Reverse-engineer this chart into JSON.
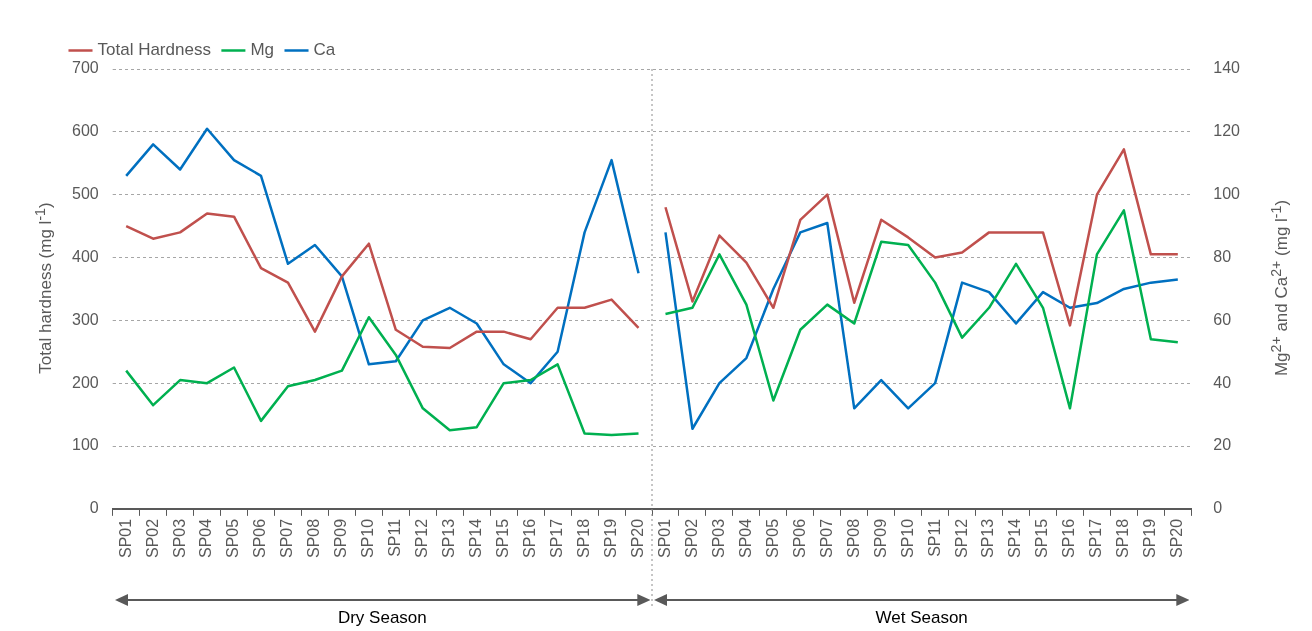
{
  "chart_data": {
    "type": "line",
    "ylabel": "Total hardness (mg l$^{-1}$)",
    "y2label": "Mg$^{2+}$ and Ca$^{2+}$ (mg l$^{-1}$)",
    "categories": [
      "SP01",
      "SP02",
      "SP03",
      "SP04",
      "SP05",
      "SP06",
      "SP07",
      "SP08",
      "SP09",
      "SP10",
      "SP11",
      "SP12",
      "SP13",
      "SP14",
      "SP15",
      "SP16",
      "SP17",
      "SP18",
      "SP19",
      "SP20",
      "SP01",
      "SP02",
      "SP03",
      "SP04",
      "SP05",
      "SP06",
      "SP07",
      "SP08",
      "SP09",
      "SP10",
      "SP11",
      "SP12",
      "SP13",
      "SP14",
      "SP15",
      "SP16",
      "SP17",
      "SP18",
      "SP19",
      "SP20"
    ],
    "series": [
      {
        "name": "Total Hardness",
        "color": "#c0504d",
        "values": [
          450,
          430,
          440,
          470,
          465,
          383,
          360,
          282,
          370,
          422,
          285,
          258,
          256,
          282,
          282,
          270,
          320,
          320,
          333,
          288,
          null,
          null,
          null,
          null,
          null,
          null,
          null,
          null,
          null,
          null,
          null,
          null,
          null,
          null,
          null,
          null,
          null,
          null,
          null,
          null
        ]
      },
      {
        "name": "Mg",
        "color": "#00b050",
        "axis": "y2",
        "values": [
          44,
          33,
          41,
          40,
          45,
          28,
          39,
          41,
          44,
          61,
          49,
          32,
          25,
          26,
          40,
          41,
          46,
          24,
          23.5,
          24,
          null,
          null,
          null,
          null,
          null,
          null,
          null,
          null,
          null,
          null,
          null,
          null,
          null,
          null,
          null,
          null,
          null,
          null,
          null,
          null
        ]
      },
      {
        "name": "Ca",
        "color": "#0070c0",
        "axis": "y2",
        "values": [
          106,
          116,
          108,
          121,
          111,
          106,
          78,
          84,
          74,
          46,
          47,
          60,
          64,
          59,
          46,
          40,
          50,
          88,
          111,
          75,
          null,
          null,
          null,
          null,
          null,
          null,
          null,
          null,
          null,
          null,
          null,
          null,
          null,
          null,
          null,
          null,
          null,
          null,
          null,
          null
        ]
      },
      {
        "color": "#c0504d",
        "values": [
          null,
          null,
          null,
          null,
          null,
          null,
          null,
          null,
          null,
          null,
          null,
          null,
          null,
          null,
          null,
          null,
          null,
          null,
          null,
          null,
          480,
          330,
          435,
          392,
          320,
          460,
          500,
          328,
          460,
          432,
          400,
          408,
          440,
          440,
          440,
          292,
          500,
          572,
          405,
          405
        ]
      },
      {
        "color": "#00b050",
        "axis": "y2",
        "values": [
          null,
          null,
          null,
          null,
          null,
          null,
          null,
          null,
          null,
          null,
          null,
          null,
          null,
          null,
          null,
          null,
          null,
          null,
          null,
          null,
          62,
          64,
          81,
          65,
          34.5,
          57,
          65,
          59,
          85,
          84,
          72,
          54.5,
          64,
          78,
          64,
          32,
          81,
          95,
          54,
          53
        ]
      },
      {
        "color": "#0070c0",
        "axis": "y2",
        "values": [
          null,
          null,
          null,
          null,
          null,
          null,
          null,
          null,
          null,
          null,
          null,
          null,
          null,
          null,
          null,
          null,
          null,
          null,
          null,
          null,
          88,
          25.5,
          40,
          48,
          70,
          88,
          91,
          32,
          41,
          32,
          40,
          72,
          69,
          59,
          69,
          64,
          65.5,
          70,
          72,
          73
        ]
      }
    ],
    "ylim": [
      0,
      700
    ],
    "yticks": [
      0,
      100,
      200,
      300,
      400,
      500,
      600,
      700
    ],
    "y2lim": [
      0,
      140
    ],
    "y2ticks": [
      0,
      20,
      40,
      60,
      80,
      100,
      120,
      140
    ],
    "annotations": [
      "Dry Season",
      "Wet Season"
    ],
    "ref_lines": [
      {
        "axis": "x",
        "value": "SP20",
        "color": "#8c8c8c",
        "line_style": "dotted"
      }
    ],
    "grid": "y",
    "legend": "top left",
    "marker": "none",
    "line_style": "solid"
  }
}
